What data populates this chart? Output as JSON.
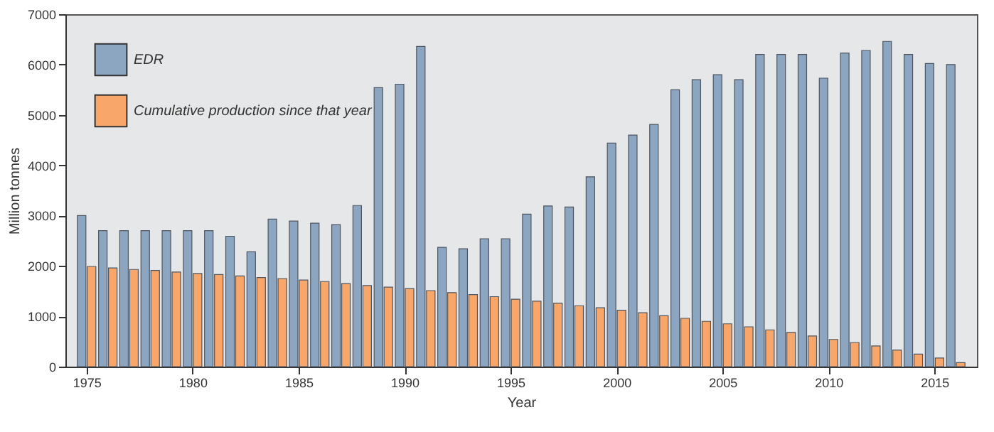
{
  "chart_data": {
    "type": "bar",
    "xlabel": "Year",
    "ylabel": "Million tonnes",
    "x": [
      1975,
      1976,
      1977,
      1978,
      1979,
      1980,
      1981,
      1982,
      1983,
      1984,
      1985,
      1986,
      1987,
      1988,
      1989,
      1990,
      1991,
      1992,
      1993,
      1994,
      1995,
      1996,
      1997,
      1998,
      1999,
      2000,
      2001,
      2002,
      2003,
      2004,
      2005,
      2006,
      2007,
      2008,
      2009,
      2010,
      2011,
      2012,
      2013,
      2014,
      2015,
      2016
    ],
    "series": [
      {
        "name": "EDR",
        "color": "#8ca5c0",
        "values": [
          3000,
          2700,
          2700,
          2700,
          2700,
          2700,
          2700,
          2590,
          2280,
          2930,
          2890,
          2850,
          2820,
          3200,
          5540,
          5610,
          6360,
          2370,
          2340,
          2540,
          2540,
          3030,
          3190,
          3170,
          3770,
          4440,
          4600,
          4810,
          5500,
          5700,
          5800,
          5700,
          6200,
          6200,
          6200,
          5730,
          6230,
          6280,
          6460,
          6200,
          6020,
          6000
        ]
      },
      {
        "name": "Cumulative production since that year",
        "color": "#f9a66a",
        "values": [
          1990,
          1960,
          1930,
          1910,
          1880,
          1850,
          1830,
          1800,
          1770,
          1750,
          1720,
          1690,
          1650,
          1610,
          1580,
          1550,
          1510,
          1470,
          1430,
          1390,
          1340,
          1300,
          1260,
          1210,
          1170,
          1120,
          1070,
          1010,
          960,
          900,
          850,
          790,
          730,
          680,
          610,
          540,
          480,
          410,
          330,
          250,
          170,
          80
        ]
      }
    ],
    "xlim": [
      1974,
      2017
    ],
    "xticks": [
      1975,
      1980,
      1985,
      1990,
      1995,
      2000,
      2005,
      2010,
      2015
    ],
    "ylim": [
      0,
      7000
    ],
    "yticks": [
      0,
      1000,
      2000,
      3000,
      4000,
      5000,
      6000,
      7000
    ],
    "grid": false,
    "legend": "top left"
  }
}
